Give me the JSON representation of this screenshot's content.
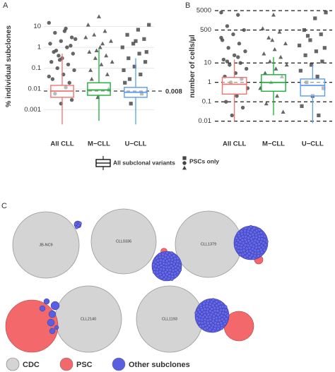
{
  "chart_data": [
    {
      "type": "box",
      "panel": "A",
      "y_label": "% individual subclones",
      "log_y": true,
      "grid": "solid",
      "ylim": [
        0.00015,
        100
      ],
      "yticks": [
        0.001,
        0.01,
        0.1,
        1,
        10
      ],
      "categories": [
        "All CLL",
        "M−CLL",
        "U−CLL"
      ],
      "hline": {
        "value": 0.008
      },
      "boxes": [
        {
          "color": "#f07470",
          "shape": "circle",
          "low": 0.0002,
          "q1": 0.004,
          "median": 0.008,
          "q3": 0.015,
          "high": 0.5,
          "points": [
            15,
            8,
            5,
            3,
            2,
            1.5,
            1,
            0.7,
            0.5,
            0.3,
            0.2,
            0.15,
            0.1,
            0.08,
            0.05,
            0.03,
            0.02,
            0.4,
            2.5,
            6,
            0.6,
            1.2,
            0.25,
            0.04,
            0.012,
            0.006,
            0.003,
            0.002
          ]
        },
        {
          "color": "#1aaf3a",
          "shape": "triangle",
          "low": 0.0003,
          "q1": 0.005,
          "median": 0.009,
          "q3": 0.02,
          "high": 0.8,
          "points": [
            30,
            12,
            6,
            4,
            2,
            1,
            0.6,
            0.4,
            0.3,
            0.2,
            0.15,
            0.08,
            0.05,
            0.7,
            3,
            1.5,
            0.03,
            0.01,
            0.004
          ]
        },
        {
          "color": "#5b9bf0",
          "shape": "square",
          "low": 0.0002,
          "q1": 0.004,
          "median": 0.007,
          "q3": 0.012,
          "high": 0.3,
          "points": [
            12,
            7,
            4,
            2.5,
            1.5,
            1,
            0.5,
            0.3,
            0.2,
            0.12,
            0.08,
            0.05,
            0.03,
            0.6,
            2,
            0.02,
            0.006,
            0.002
          ]
        }
      ]
    },
    {
      "type": "box",
      "panel": "B",
      "y_label": "number of cells/µl",
      "log_y": true,
      "grid": "dashed",
      "ylim": [
        0.005,
        9000
      ],
      "yticks": [
        0.01,
        0.1,
        1,
        10,
        500,
        5000
      ],
      "categories": [
        "All CLL",
        "M−CLL",
        "U−CLL"
      ],
      "boxes": [
        {
          "color": "#f07470",
          "shape": "circle",
          "low": 0.01,
          "q1": 0.25,
          "median": 0.8,
          "q3": 1.8,
          "high": 15,
          "points": [
            4000,
            3000,
            800,
            500,
            300,
            150,
            100,
            60,
            40,
            25,
            15,
            10,
            8,
            5,
            3,
            2,
            1.5,
            1,
            0.5,
            0.2,
            0.1,
            0.05,
            0.02,
            200,
            20,
            12
          ]
        },
        {
          "color": "#1aaf3a",
          "shape": "triangle",
          "low": 0.02,
          "q1": 0.35,
          "median": 1,
          "q3": 2.5,
          "high": 20,
          "points": [
            3000,
            600,
            400,
            200,
            100,
            50,
            30,
            20,
            12,
            8,
            5,
            3,
            2,
            1,
            0.5,
            0.2,
            0.08,
            0.03,
            150
          ]
        },
        {
          "color": "#5b9bf0",
          "shape": "square",
          "low": 0.008,
          "q1": 0.2,
          "median": 0.7,
          "q3": 1.5,
          "high": 8,
          "points": [
            4000,
            2000,
            500,
            300,
            150,
            80,
            40,
            25,
            12,
            8,
            4,
            2,
            1,
            0.5,
            0.2,
            0.06,
            0.02,
            250,
            60
          ]
        }
      ]
    }
  ],
  "legend": {
    "box_label": "All subclonal variants",
    "points_label": "PSCs only"
  },
  "panel_c": {
    "label": "C",
    "samples": [
      "JB-NC9",
      "CLL0336",
      "CLL1379",
      "CLL2140",
      "CLL1193"
    ],
    "legend": [
      "CDC",
      "PSC",
      "Other subclones"
    ]
  }
}
